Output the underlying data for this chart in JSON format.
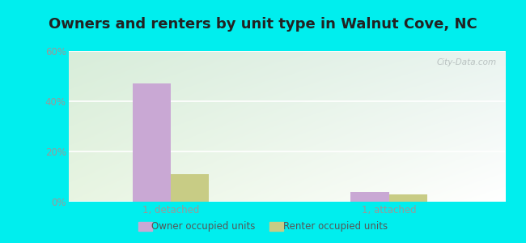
{
  "title": "Owners and renters by unit type in Walnut Cove, NC",
  "categories": [
    "1, detached",
    "1, attached"
  ],
  "owner_values": [
    47,
    4
  ],
  "renter_values": [
    11,
    3
  ],
  "owner_color": "#c9a8d4",
  "renter_color": "#c8cc85",
  "ylim": [
    0,
    60
  ],
  "yticks": [
    0,
    20,
    40,
    60
  ],
  "ytick_labels": [
    "0%",
    "20%",
    "40%",
    "60%"
  ],
  "background_color": "#00EEEE",
  "plot_bg_topleft": "#d8edda",
  "plot_bg_topright": "#eaf4f0",
  "plot_bg_bottomleft": "#e8f5e2",
  "plot_bg_bottomright": "#ffffff",
  "title_fontsize": 13,
  "tick_fontsize": 8.5,
  "legend_labels": [
    "Owner occupied units",
    "Renter occupied units"
  ],
  "bar_width": 0.28,
  "watermark": "City-Data.com",
  "grid_color": "#dddddd",
  "tick_color": "#999999"
}
